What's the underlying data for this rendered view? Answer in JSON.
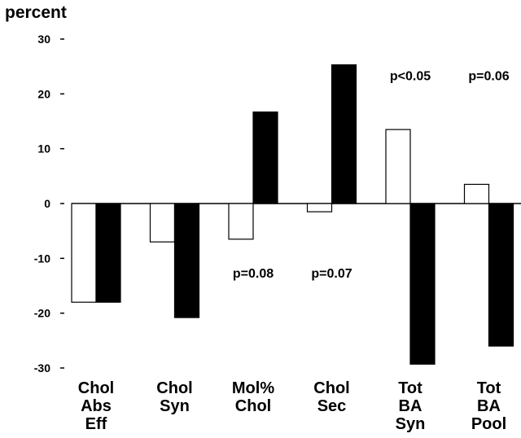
{
  "chart_data": {
    "type": "bar",
    "ylabel": "percent",
    "ylim": [
      -30,
      30
    ],
    "yticks": [
      30,
      20,
      10,
      0,
      -10,
      -20,
      -30
    ],
    "categories": [
      [
        "Chol",
        "Abs",
        "Eff"
      ],
      [
        "Chol",
        "Syn"
      ],
      [
        "Mol%",
        "Chol"
      ],
      [
        "Chol",
        "Sec"
      ],
      [
        "Tot",
        "BA",
        "Syn"
      ],
      [
        "Tot",
        "BA",
        "Pool"
      ]
    ],
    "series": [
      {
        "fill": "#ffffff",
        "values": [
          -18,
          -7,
          -6.5,
          -1.5,
          13.5,
          3.5
        ]
      },
      {
        "fill": "#000000",
        "values": [
          -18,
          -20.8,
          16.7,
          25.3,
          -29.3,
          -26
        ]
      }
    ],
    "annotations": [
      {
        "text": "p<0.05",
        "category": 4,
        "y": 22.5
      },
      {
        "text": "p=0.06",
        "category": 5,
        "y": 22.5
      },
      {
        "text": "p=0.08",
        "category": 2,
        "y": -13.5
      },
      {
        "text": "p=0.07",
        "category": 3,
        "y": -13.5
      }
    ]
  }
}
